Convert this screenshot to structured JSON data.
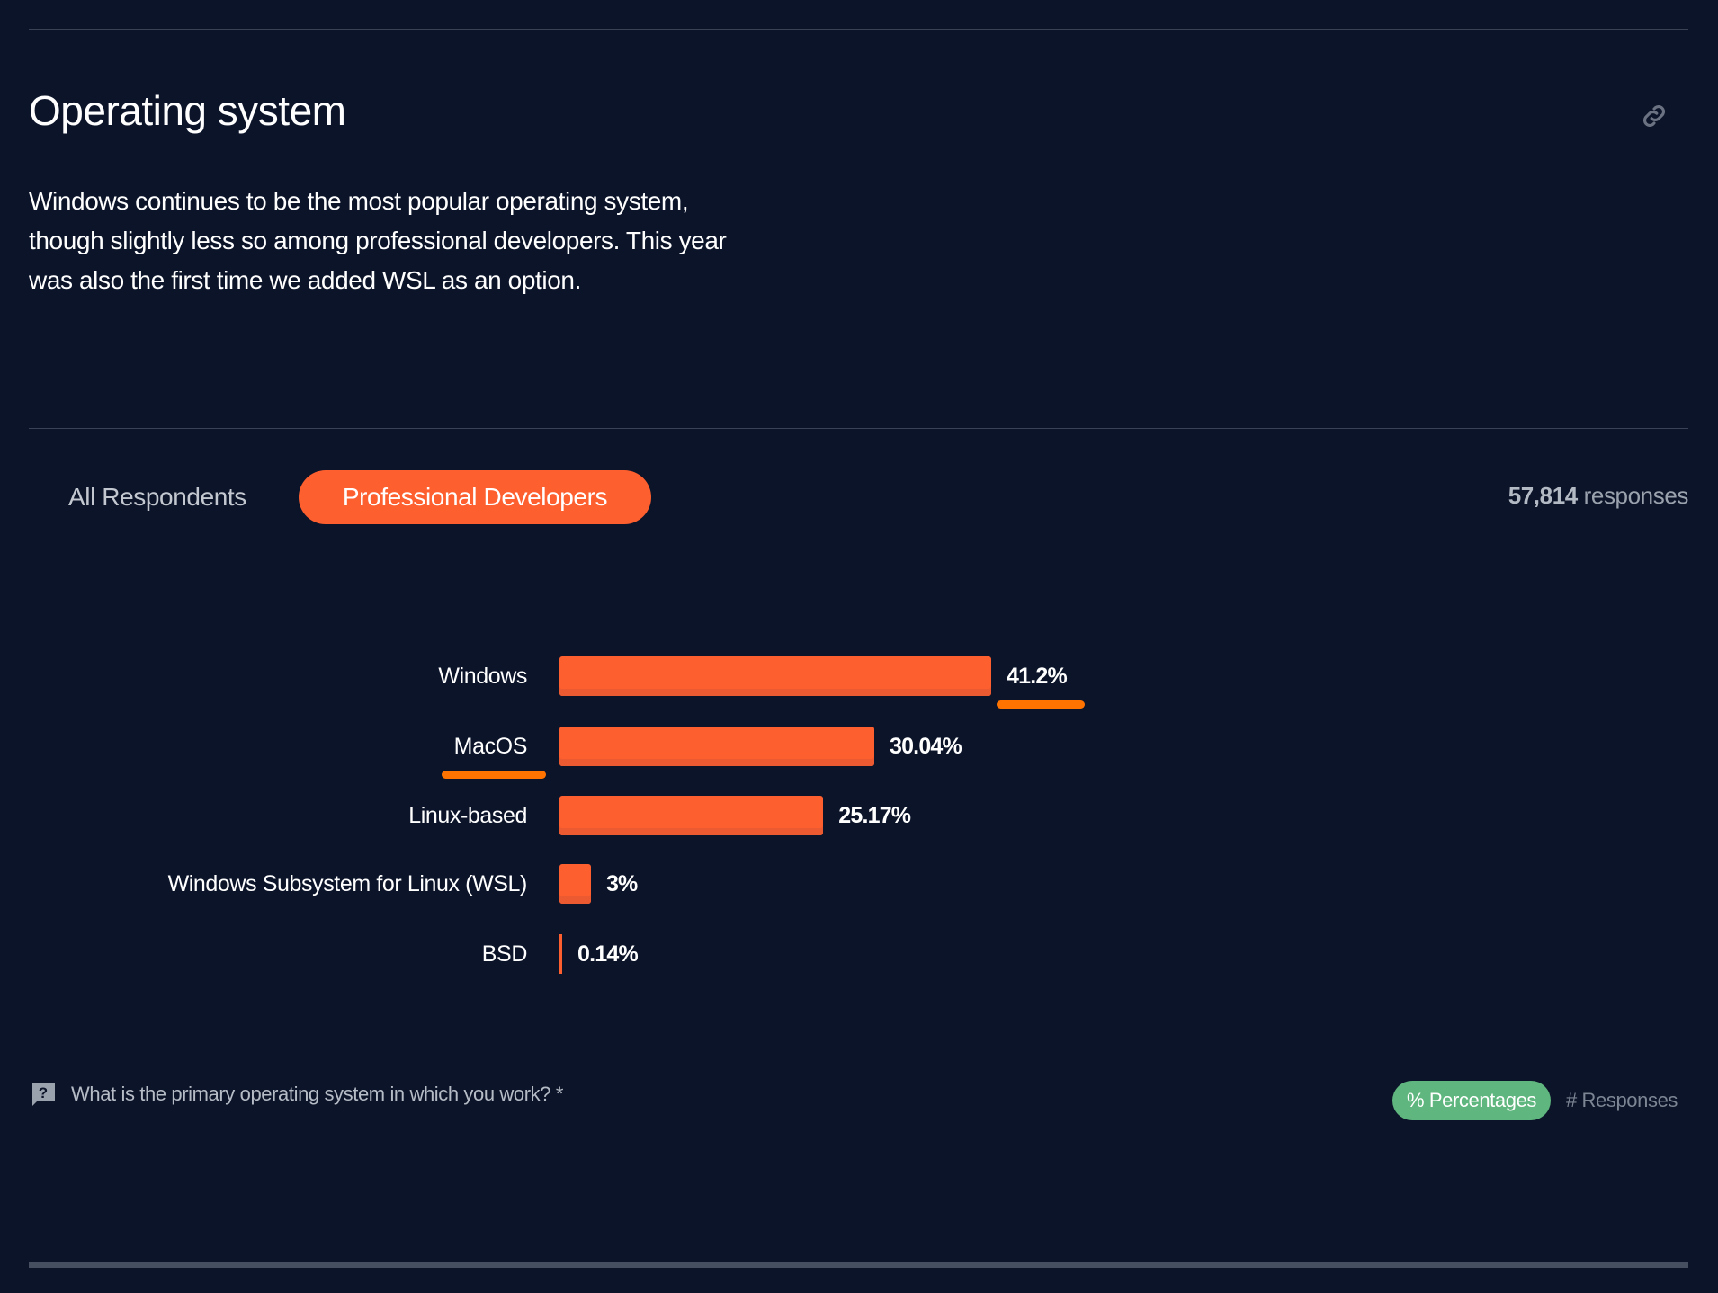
{
  "section": {
    "title": "Operating system",
    "description": "Windows continues to be the most popular operating system, though slightly less so among professional developers. This year was also the first time we added WSL as an option.",
    "link_icon": "link-icon"
  },
  "tabs": [
    {
      "label": "All Respondents",
      "active": false
    },
    {
      "label": "Professional Developers",
      "active": true
    }
  ],
  "responses": {
    "count": "57,814",
    "label": "responses"
  },
  "colors": {
    "bar": "#fe5f2f",
    "accent_underline": "#ff7300",
    "toggle_active": "#5fb67e",
    "background": "#0c1429"
  },
  "chart_data": {
    "type": "bar",
    "orientation": "horizontal",
    "categories": [
      "Windows",
      "MacOS",
      "Linux-based",
      "Windows Subsystem for Linux (WSL)",
      "BSD"
    ],
    "values": [
      41.2,
      30.04,
      25.17,
      3,
      0.14
    ],
    "value_labels": [
      "41.2%",
      "30.04%",
      "25.17%",
      "3%",
      "0.14%"
    ],
    "unit": "%",
    "title": "",
    "xlabel": "",
    "ylabel": ""
  },
  "footer": {
    "question": "What is the primary operating system in which you work? *",
    "question_icon": "question-icon",
    "toggle": {
      "percentages": "% Percentages",
      "responses": "# Responses",
      "selected": "percentages"
    }
  }
}
